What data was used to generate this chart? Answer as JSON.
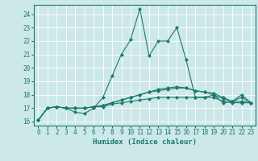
{
  "title": "",
  "xlabel": "Humidex (Indice chaleur)",
  "ylabel": "",
  "background_color": "#cde8e8",
  "grid_color": "#ffffff",
  "line_color": "#1a7a6e",
  "xlim": [
    -0.5,
    23.5
  ],
  "ylim": [
    15.7,
    24.7
  ],
  "yticks": [
    16,
    17,
    18,
    19,
    20,
    21,
    22,
    23,
    24
  ],
  "xticks": [
    0,
    1,
    2,
    3,
    4,
    5,
    6,
    7,
    8,
    9,
    10,
    11,
    12,
    13,
    14,
    15,
    16,
    17,
    18,
    19,
    20,
    21,
    22,
    23
  ],
  "series": [
    [
      16.1,
      17.0,
      17.1,
      17.0,
      16.7,
      16.6,
      17.0,
      17.8,
      19.4,
      21.0,
      22.1,
      24.4,
      20.9,
      22.0,
      22.0,
      23.0,
      20.6,
      17.8,
      17.8,
      18.0,
      17.4,
      17.5,
      18.0,
      17.4
    ],
    [
      16.1,
      17.0,
      17.1,
      17.0,
      17.0,
      17.0,
      17.1,
      17.1,
      17.3,
      17.4,
      17.5,
      17.6,
      17.7,
      17.8,
      17.8,
      17.8,
      17.8,
      17.8,
      17.8,
      17.8,
      17.5,
      17.4,
      17.4,
      17.4
    ],
    [
      16.1,
      17.0,
      17.1,
      17.0,
      17.0,
      17.0,
      17.1,
      17.2,
      17.4,
      17.6,
      17.8,
      18.0,
      18.2,
      18.3,
      18.4,
      18.5,
      18.5,
      18.3,
      18.2,
      18.0,
      17.7,
      17.5,
      17.5,
      17.4
    ],
    [
      16.1,
      17.0,
      17.1,
      17.0,
      17.0,
      17.0,
      17.1,
      17.2,
      17.4,
      17.6,
      17.8,
      18.0,
      18.2,
      18.4,
      18.5,
      18.6,
      18.5,
      18.3,
      18.2,
      18.1,
      17.8,
      17.5,
      17.8,
      17.4
    ]
  ],
  "tick_fontsize": 5.5,
  "xlabel_fontsize": 6.5,
  "marker_size": 2.2,
  "line_width": 0.8
}
